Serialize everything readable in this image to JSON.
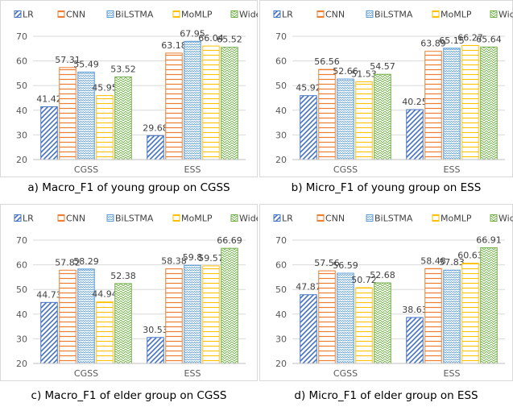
{
  "colors": {
    "LR": "#4472c4",
    "CNN": "#ed7d31",
    "BiLSTMA": "#5b9bd5",
    "MoMLP": "#ffc000",
    "WideDeep": "#70ad47"
  },
  "chart_data": [
    {
      "type": "bar",
      "caption": "a) Macro_F1 of young group on CGSS",
      "categories": [
        "CGSS",
        "ESS"
      ],
      "series": [
        {
          "name": "LR",
          "values": [
            41.42,
            29.68
          ]
        },
        {
          "name": "CNN",
          "values": [
            57.31,
            63.18
          ]
        },
        {
          "name": "BiLSTMA",
          "values": [
            55.49,
            67.95
          ]
        },
        {
          "name": "MoMLP",
          "values": [
            45.95,
            66.04
          ]
        },
        {
          "name": "WideDeep",
          "values": [
            53.52,
            65.52
          ]
        }
      ],
      "data_labels": [
        [
          "41.42",
          "29.68"
        ],
        [
          "57.31",
          "63.18"
        ],
        [
          "55.49",
          "67.95"
        ],
        [
          "45.95",
          "66.04"
        ],
        [
          "53.52",
          "65.52"
        ]
      ],
      "ylim": [
        20,
        70
      ],
      "yticks": [
        20,
        30,
        40,
        50,
        60,
        70
      ],
      "ytick_labels": [
        "20",
        "30",
        "40",
        "50",
        "60",
        "70"
      ],
      "grid": true,
      "legend": "top"
    },
    {
      "type": "bar",
      "caption": "b) Micro_F1 of young group on ESS",
      "categories": [
        "CGSS",
        "ESS"
      ],
      "series": [
        {
          "name": "LR",
          "values": [
            45.92,
            40.25
          ]
        },
        {
          "name": "CNN",
          "values": [
            56.56,
            63.89
          ]
        },
        {
          "name": "BiLSTMA",
          "values": [
            52.66,
            65.15
          ]
        },
        {
          "name": "MoMLP",
          "values": [
            51.53,
            66.27
          ]
        },
        {
          "name": "WideDeep",
          "values": [
            54.57,
            65.64
          ]
        }
      ],
      "data_labels": [
        [
          "45.92",
          "40.25"
        ],
        [
          "56.56",
          "63.89"
        ],
        [
          "52.66",
          "65.15"
        ],
        [
          "51.53",
          "66.27"
        ],
        [
          "54.57",
          "65.64"
        ]
      ],
      "ylim": [
        20,
        70
      ],
      "yticks": [
        20,
        30,
        40,
        50,
        60,
        70
      ],
      "ytick_labels": [
        "20",
        "30",
        "40",
        "50",
        "60",
        "70"
      ],
      "grid": true,
      "legend": "top"
    },
    {
      "type": "bar",
      "caption": "c) Macro_F1 of elder group on CGSS",
      "categories": [
        "CGSS",
        "ESS"
      ],
      "series": [
        {
          "name": "LR",
          "values": [
            44.73,
            30.53
          ]
        },
        {
          "name": "CNN",
          "values": [
            57.82,
            58.38
          ]
        },
        {
          "name": "BiLSTMA",
          "values": [
            58.29,
            59.8
          ]
        },
        {
          "name": "MoMLP",
          "values": [
            44.94,
            59.57
          ]
        },
        {
          "name": "WideDeep",
          "values": [
            52.38,
            66.69
          ]
        }
      ],
      "data_labels": [
        [
          "44.73",
          "30.53"
        ],
        [
          "57.82",
          "58.38"
        ],
        [
          "58.29",
          "59.8"
        ],
        [
          "44.94",
          "59.57"
        ],
        [
          "52.38",
          "66.69"
        ]
      ],
      "ylim": [
        20,
        70
      ],
      "yticks": [
        20,
        30,
        40,
        50,
        60,
        70
      ],
      "ytick_labels": [
        "20",
        "30",
        "40",
        "50",
        "60",
        "70"
      ],
      "grid": true,
      "legend": "top"
    },
    {
      "type": "bar",
      "caption": "d) Micro_F1 of elder group on ESS",
      "categories": [
        "CGSS",
        "ESS"
      ],
      "series": [
        {
          "name": "LR",
          "values": [
            47.87,
            38.63
          ]
        },
        {
          "name": "CNN",
          "values": [
            57.56,
            58.48
          ]
        },
        {
          "name": "BiLSTMA",
          "values": [
            56.59,
            57.83
          ]
        },
        {
          "name": "MoMLP",
          "values": [
            50.72,
            60.63
          ]
        },
        {
          "name": "WideDeep",
          "values": [
            52.68,
            66.91
          ]
        }
      ],
      "data_labels": [
        [
          "47.87",
          "38.63"
        ],
        [
          "57.56",
          "58.48"
        ],
        [
          "56.59",
          "57.83"
        ],
        [
          "50.72",
          "60.63"
        ],
        [
          "52.68",
          "66.91"
        ]
      ],
      "ylim": [
        20,
        70
      ],
      "yticks": [
        20,
        30,
        40,
        50,
        60,
        70
      ],
      "ytick_labels": [
        "20",
        "30",
        "40",
        "50",
        "60",
        "70"
      ],
      "grid": true,
      "legend": "top"
    }
  ]
}
